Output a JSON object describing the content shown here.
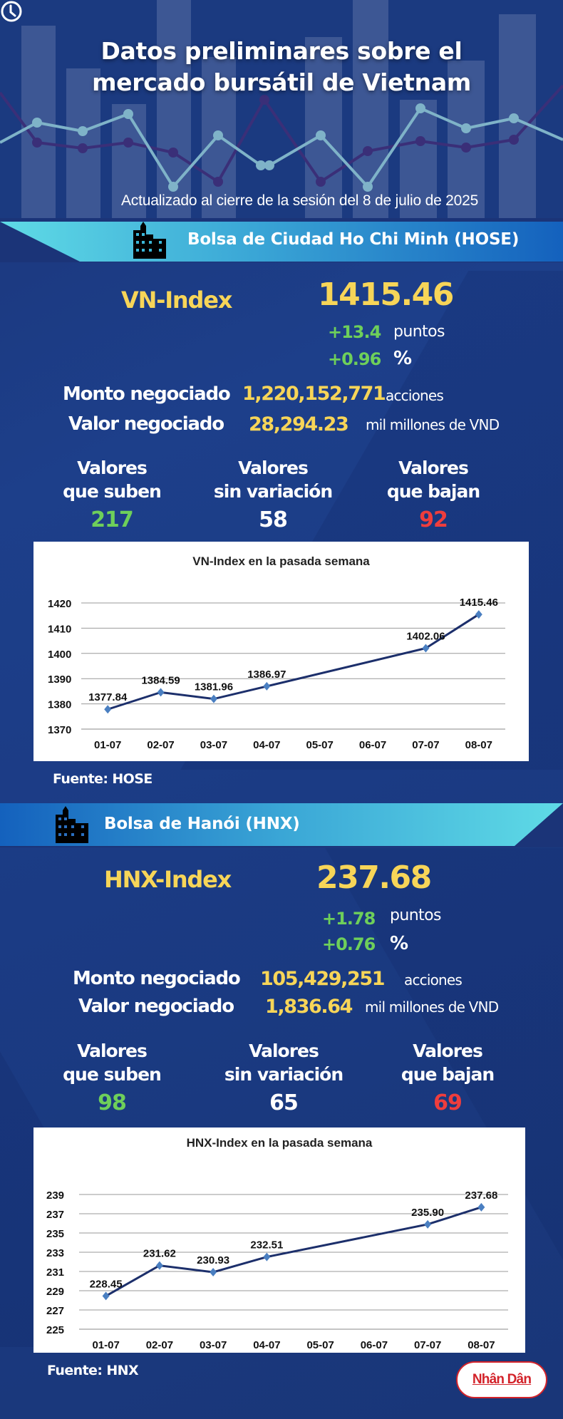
{
  "header": {
    "title_line1": "Datos preliminares sobre el",
    "title_line2": "mercado bursátil de Vietnam",
    "updated": "Actualizado al cierre de la sesión del 8 de julio de 2025",
    "icon": "clock-icon"
  },
  "colors": {
    "background": "#1b3a80",
    "accent_yellow": "#f7d558",
    "up_green": "#6ecf5a",
    "down_red": "#ef3d3d",
    "banner_cyan": "#5bd8e4",
    "banner_blue": "#1565c0",
    "chart_line": "#1c2f6b",
    "chart_marker": "#4a7fc1"
  },
  "hose": {
    "banner": "Bolsa de Ciudad Ho Chi Minh (HOSE)",
    "banner_icon": "building-icon",
    "index_label": "VN-Index",
    "index_value": "1415.46",
    "change_points": "+13.4",
    "change_points_unit": "puntos",
    "change_pct": "+0.96",
    "change_pct_unit": "%",
    "volume_label": "Monto negociado",
    "volume_value": "1,220,152,771",
    "volume_unit": "acciones",
    "value_label": "Valor negociado",
    "value_value": "28,294.23",
    "value_unit": "mil millones de VND",
    "breadth": [
      {
        "line1": "Valores",
        "line2": "que suben",
        "count": "217"
      },
      {
        "line1": "Valores",
        "line2": "sin variación",
        "count": "58"
      },
      {
        "line1": "Valores",
        "line2": "que bajan",
        "count": "92"
      }
    ],
    "source": "Fuente: HOSE"
  },
  "hnx": {
    "banner": "Bolsa de Hanói (HNX)",
    "banner_icon": "building-icon",
    "index_label": "HNX-Index",
    "index_value": "237.68",
    "change_points": "+1.78",
    "change_points_unit": "puntos",
    "change_pct": "+0.76",
    "change_pct_unit": "%",
    "volume_label": "Monto negociado",
    "volume_value": "105,429,251",
    "volume_unit": "acciones",
    "value_label": "Valor negociado",
    "value_value": "1,836.64",
    "value_unit": "mil millones de VND",
    "breadth": [
      {
        "line1": "Valores",
        "line2": "que suben",
        "count": "98"
      },
      {
        "line1": "Valores",
        "line2": "sin variación",
        "count": "65"
      },
      {
        "line1": "Valores",
        "line2": "que bajan",
        "count": "69"
      }
    ],
    "source": "Fuente:  HNX"
  },
  "logo": {
    "text": "Nhân Dân"
  },
  "chart_data": [
    {
      "type": "line",
      "title": "VN-Index en la pasada semana",
      "categories": [
        "01-07",
        "02-07",
        "03-07",
        "04-07",
        "05-07",
        "06-07",
        "07-07",
        "08-07"
      ],
      "x": [
        "01-07",
        "02-07",
        "03-07",
        "04-07",
        "07-07",
        "08-07"
      ],
      "series": [
        {
          "name": "VN-Index",
          "values": [
            1377.84,
            1384.59,
            1381.96,
            1386.97,
            1402.06,
            1415.46
          ]
        }
      ],
      "data_labels": [
        "1377.84",
        "1384.59",
        "1381.96",
        "1386.97",
        "1402.06",
        "1415.46"
      ],
      "yticks": [
        1370,
        1380,
        1390,
        1400,
        1410,
        1420
      ],
      "ylim": [
        1370,
        1420
      ],
      "xlabel": "",
      "ylabel": "",
      "grid": true,
      "legend": "none"
    },
    {
      "type": "line",
      "title": "HNX-Index en la pasada semana",
      "categories": [
        "01-07",
        "02-07",
        "03-07",
        "04-07",
        "05-07",
        "06-07",
        "07-07",
        "08-07"
      ],
      "x": [
        "01-07",
        "02-07",
        "03-07",
        "04-07",
        "07-07",
        "08-07"
      ],
      "series": [
        {
          "name": "HNX-Index",
          "values": [
            228.45,
            231.62,
            230.93,
            232.51,
            235.9,
            237.68
          ]
        }
      ],
      "data_labels": [
        "228.45",
        "231.62",
        "230.93",
        "232.51",
        "235.90",
        "237.68"
      ],
      "yticks": [
        225,
        227,
        229,
        231,
        233,
        235,
        237,
        239
      ],
      "ylim": [
        225,
        239
      ],
      "xlabel": "",
      "ylabel": "",
      "grid": true,
      "legend": "none"
    }
  ]
}
